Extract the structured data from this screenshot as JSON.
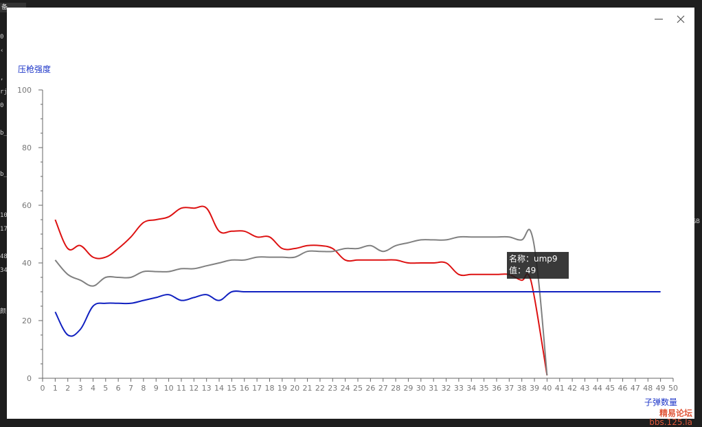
{
  "background": {
    "tab_label": "备",
    "edge_text": [
      "0",
      "‹",
      "",
      ",",
      "rj",
      "0",
      "",
      "b_",
      "",
      "",
      "b_",
      "",
      "",
      "10",
      "17",
      "",
      "48",
      "34",
      "",
      "",
      "颜"
    ],
    "right_text": "GB"
  },
  "window": {
    "minimize_label": "minimize",
    "close_label": "close"
  },
  "chart_data": {
    "type": "line",
    "ylabel": "压枪强度",
    "xlabel": "子弹数量",
    "xlim": [
      0,
      50
    ],
    "ylim": [
      0,
      100
    ],
    "x_ticks": [
      0,
      1,
      2,
      3,
      4,
      5,
      6,
      7,
      8,
      9,
      10,
      11,
      12,
      13,
      14,
      15,
      16,
      17,
      18,
      19,
      20,
      21,
      22,
      23,
      24,
      25,
      26,
      27,
      28,
      29,
      30,
      31,
      32,
      33,
      34,
      35,
      36,
      37,
      38,
      39,
      40,
      41,
      42,
      43,
      44,
      45,
      46,
      47,
      48,
      49,
      50
    ],
    "y_ticks": [
      0,
      20,
      40,
      60,
      80,
      100
    ],
    "grid": false,
    "series": [
      {
        "color": "#dd1111",
        "x": [
          1,
          2,
          3,
          4,
          5,
          6,
          7,
          8,
          9,
          10,
          11,
          12,
          13,
          14,
          15,
          16,
          17,
          18,
          19,
          20,
          21,
          22,
          23,
          24,
          25,
          26,
          27,
          28,
          29,
          30,
          31,
          32,
          33,
          34,
          35,
          36,
          37,
          38,
          38.5,
          39,
          40
        ],
        "values": [
          55,
          45,
          46,
          42,
          42,
          45,
          49,
          54,
          55,
          56,
          59,
          59,
          59,
          51,
          51,
          51,
          49,
          49,
          45,
          45,
          46,
          46,
          45,
          41,
          41,
          41,
          41,
          41,
          40,
          40,
          40,
          40,
          36,
          36,
          36,
          36,
          36,
          34,
          36,
          28,
          1
        ]
      },
      {
        "color": "#808080",
        "x": [
          1,
          2,
          3,
          4,
          5,
          6,
          7,
          8,
          9,
          10,
          11,
          12,
          13,
          14,
          15,
          16,
          17,
          18,
          19,
          20,
          21,
          22,
          23,
          24,
          25,
          26,
          27,
          28,
          29,
          30,
          31,
          32,
          33,
          34,
          35,
          36,
          37,
          38,
          38.7,
          39.3,
          40
        ],
        "values": [
          41,
          36,
          34,
          32,
          35,
          35,
          35,
          37,
          37,
          37,
          38,
          38,
          39,
          40,
          41,
          41,
          42,
          42,
          42,
          42,
          44,
          44,
          44,
          45,
          45,
          46,
          44,
          46,
          47,
          48,
          48,
          48,
          49,
          49,
          49,
          49,
          49,
          48,
          51,
          35,
          1
        ]
      },
      {
        "color": "#1020c0",
        "x": [
          1,
          2,
          3,
          4,
          5,
          6,
          7,
          8,
          9,
          10,
          11,
          12,
          13,
          14,
          15,
          16,
          17,
          18,
          19,
          20,
          21,
          22,
          23,
          24,
          25,
          26,
          27,
          28,
          29,
          30,
          31,
          32,
          33,
          34,
          35,
          36,
          37,
          38,
          39,
          40,
          41,
          42,
          43,
          44,
          45,
          46,
          47,
          48,
          49
        ],
        "values": [
          23,
          15,
          17,
          25,
          26,
          26,
          26,
          27,
          28,
          29,
          27,
          28,
          29,
          27,
          30,
          30,
          30,
          30,
          30,
          30,
          30,
          30,
          30,
          30,
          30,
          30,
          30,
          30,
          30,
          30,
          30,
          30,
          30,
          30,
          30,
          30,
          30,
          30,
          30,
          30,
          30,
          30,
          30,
          30,
          30,
          30,
          30,
          30,
          30
        ]
      }
    ],
    "tooltip": {
      "name_label": "名称：",
      "name": "ump9",
      "value_label": "值：",
      "value": "49"
    }
  },
  "watermark": {
    "line1": "精易论坛",
    "line2": "bbs.125.la"
  }
}
